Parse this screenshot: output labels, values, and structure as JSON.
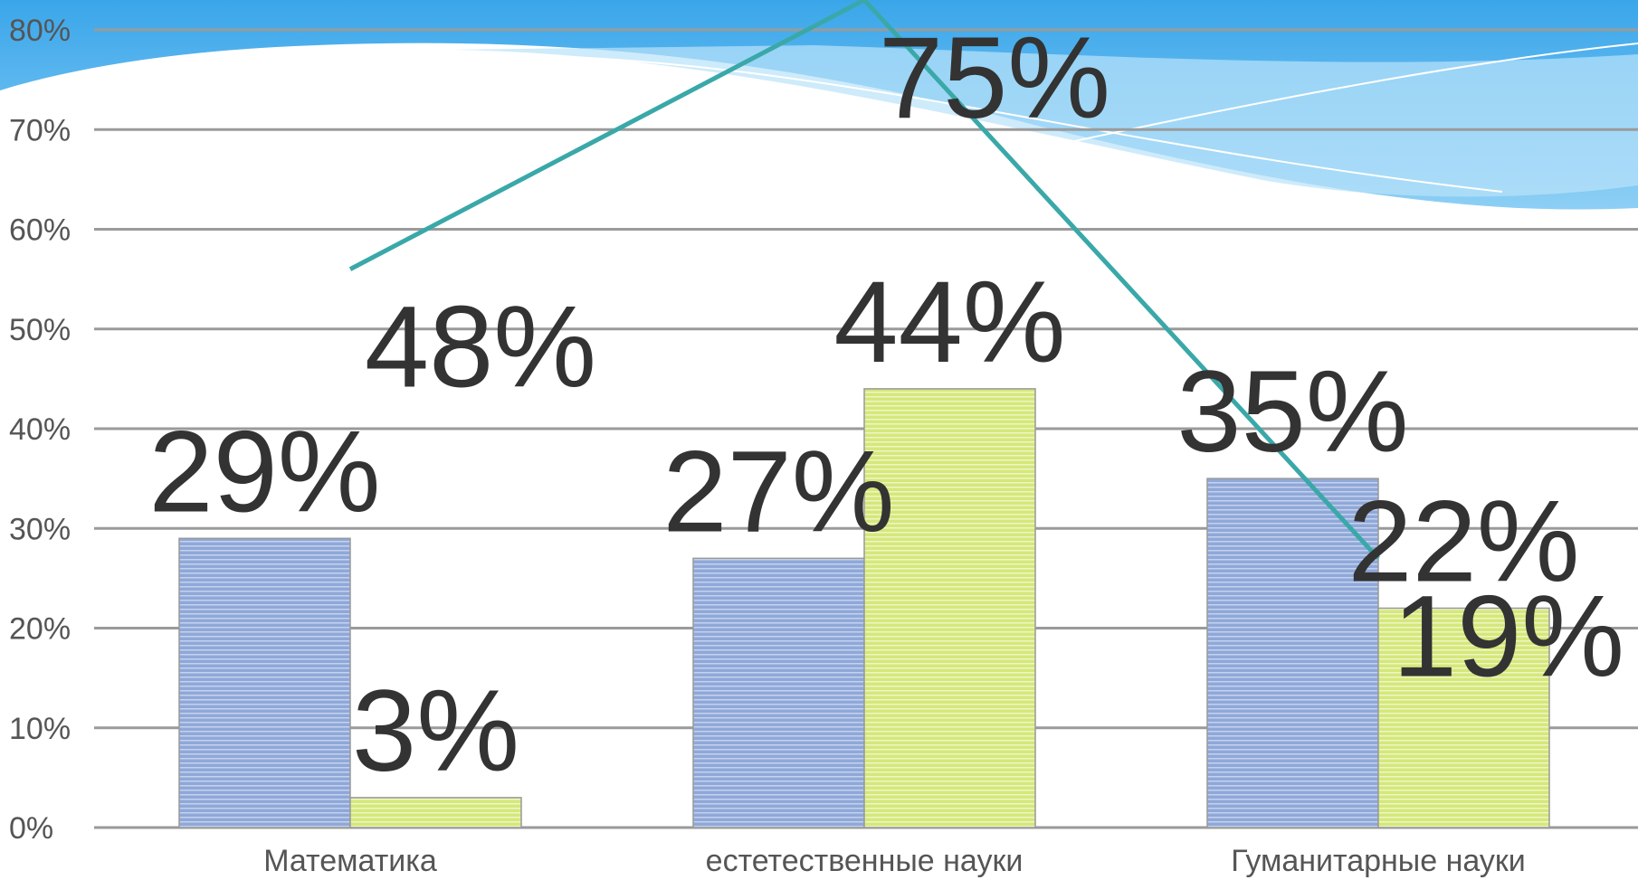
{
  "chart_data": {
    "type": "bar",
    "categories": [
      "Математика",
      "естетественные науки",
      "Гуманитарные науки"
    ],
    "series": [
      {
        "type": "bar",
        "color": "#8fa8d8",
        "values": [
          29,
          27,
          35
        ],
        "value_labels": [
          "29%",
          "27%",
          "35%"
        ]
      },
      {
        "type": "bar",
        "color": "#d4e87a",
        "values": [
          3,
          44,
          22
        ],
        "value_labels": [
          "3%",
          "44%",
          "22%"
        ]
      },
      {
        "type": "line",
        "color": "#3aa8a8",
        "axis": "y2",
        "values": [
          48,
          75,
          19
        ],
        "value_labels": [
          "48%",
          "75%",
          "19%"
        ]
      }
    ],
    "ylim": [
      0,
      80
    ],
    "yticks": [
      {
        "value": 0,
        "label": "0%"
      },
      {
        "value": 10,
        "label": "10%"
      },
      {
        "value": 20,
        "label": "20%"
      },
      {
        "value": 30,
        "label": "30%"
      },
      {
        "value": 40,
        "label": "40%"
      },
      {
        "value": 50,
        "label": "50%"
      },
      {
        "value": 60,
        "label": "60%"
      },
      {
        "value": 70,
        "label": "70%"
      },
      {
        "value": 80,
        "label": "80%"
      }
    ],
    "y2lim": [
      -8,
      72
    ],
    "grid": true
  }
}
